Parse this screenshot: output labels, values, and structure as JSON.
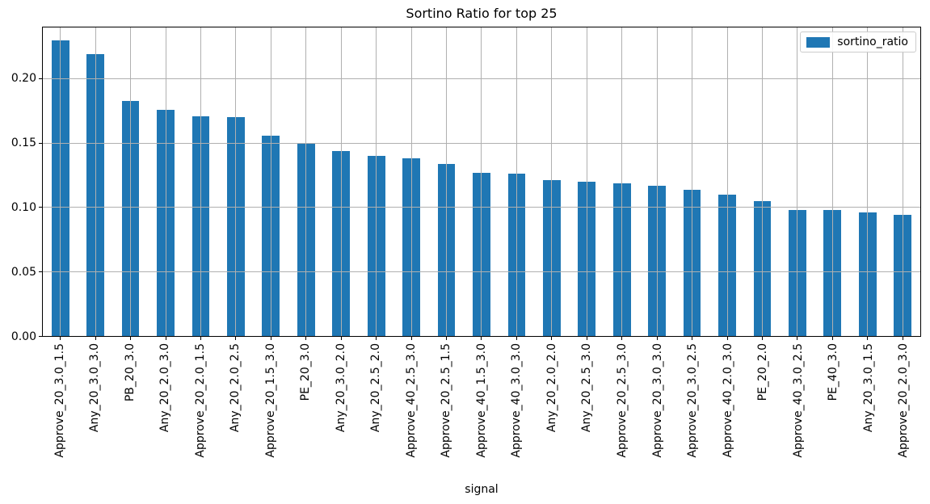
{
  "figure": {
    "title": "Sortino Ratio for top 25"
  },
  "legend": {
    "label": "sortino_ratio"
  },
  "axes": {
    "xlabel": "signal",
    "yticks": [
      {
        "label": "0.00",
        "value": 0.0
      },
      {
        "label": "0.05",
        "value": 0.05
      },
      {
        "label": "0.10",
        "value": 0.1
      },
      {
        "label": "0.15",
        "value": 0.15
      },
      {
        "label": "0.20",
        "value": 0.2
      }
    ]
  },
  "colors": {
    "bar": "#1f77b4",
    "grid": "#b0b0b0",
    "spine": "#000000",
    "legend_border": "#cccccc"
  },
  "chart_data": {
    "type": "bar",
    "title": "Sortino Ratio for top 25",
    "xlabel": "signal",
    "ylabel": "",
    "grid": true,
    "grid_above_bars": true,
    "legend": [
      "sortino_ratio"
    ],
    "legend_position": "upper right",
    "ylim": [
      0,
      0.24
    ],
    "ytick_values": [
      0.0,
      0.05,
      0.1,
      0.15,
      0.2
    ],
    "xtick_rotation": 90,
    "categories": [
      "Approve_20_3.0_1.5",
      "Any_20_3.0_3.0",
      "PB_20_3.0",
      "Any_20_2.0_3.0",
      "Approve_20_2.0_1.5",
      "Any_20_2.0_2.5",
      "Approve_20_1.5_3.0",
      "PE_20_3.0",
      "Any_20_3.0_2.0",
      "Any_20_2.5_2.0",
      "Approve_40_2.5_3.0",
      "Approve_20_2.5_1.5",
      "Approve_40_1.5_3.0",
      "Approve_40_3.0_3.0",
      "Any_20_2.0_2.0",
      "Any_20_2.5_3.0",
      "Approve_20_2.5_3.0",
      "Approve_20_3.0_3.0",
      "Approve_20_3.0_2.5",
      "Approve_40_2.0_3.0",
      "PE_20_2.0",
      "Approve_40_3.0_2.5",
      "PE_40_3.0",
      "Any_20_3.0_1.5",
      "Approve_20_2.0_3.0"
    ],
    "series": [
      {
        "name": "sortino_ratio",
        "values": [
          0.23,
          0.219,
          0.183,
          0.176,
          0.171,
          0.17,
          0.156,
          0.15,
          0.144,
          0.14,
          0.138,
          0.134,
          0.127,
          0.126,
          0.121,
          0.12,
          0.119,
          0.117,
          0.114,
          0.11,
          0.105,
          0.098,
          0.098,
          0.096,
          0.094
        ]
      }
    ]
  }
}
